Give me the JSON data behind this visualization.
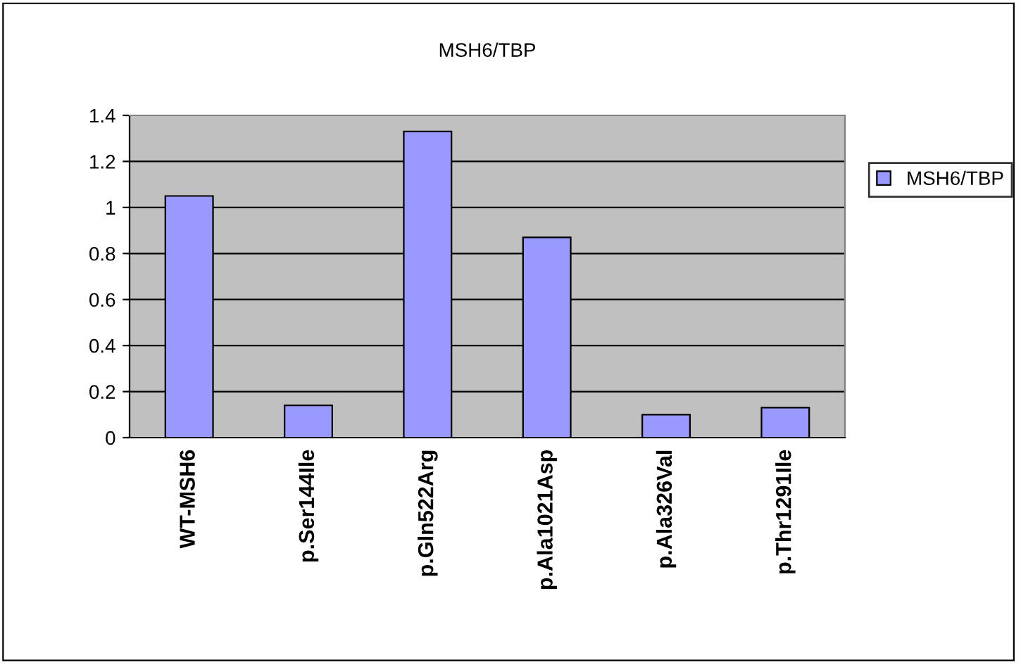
{
  "chart_data": {
    "type": "bar",
    "title": "MSH6/TBP",
    "categories": [
      "WT-MSH6",
      "p.Ser144Ile",
      "p.Gln522Arg",
      "p.Ala1021Asp",
      "p.Ala326Val",
      "p.Thr1291Ile"
    ],
    "series": [
      {
        "name": "MSH6/TBP",
        "color": "#9999ff",
        "values": [
          1.05,
          0.14,
          1.33,
          0.87,
          0.1,
          0.13
        ]
      }
    ],
    "ylim": [
      0,
      1.4
    ],
    "yticks": [
      0,
      0.2,
      0.4,
      0.6,
      0.8,
      1,
      1.2,
      1.4
    ],
    "grid": "y",
    "legend": "right"
  }
}
